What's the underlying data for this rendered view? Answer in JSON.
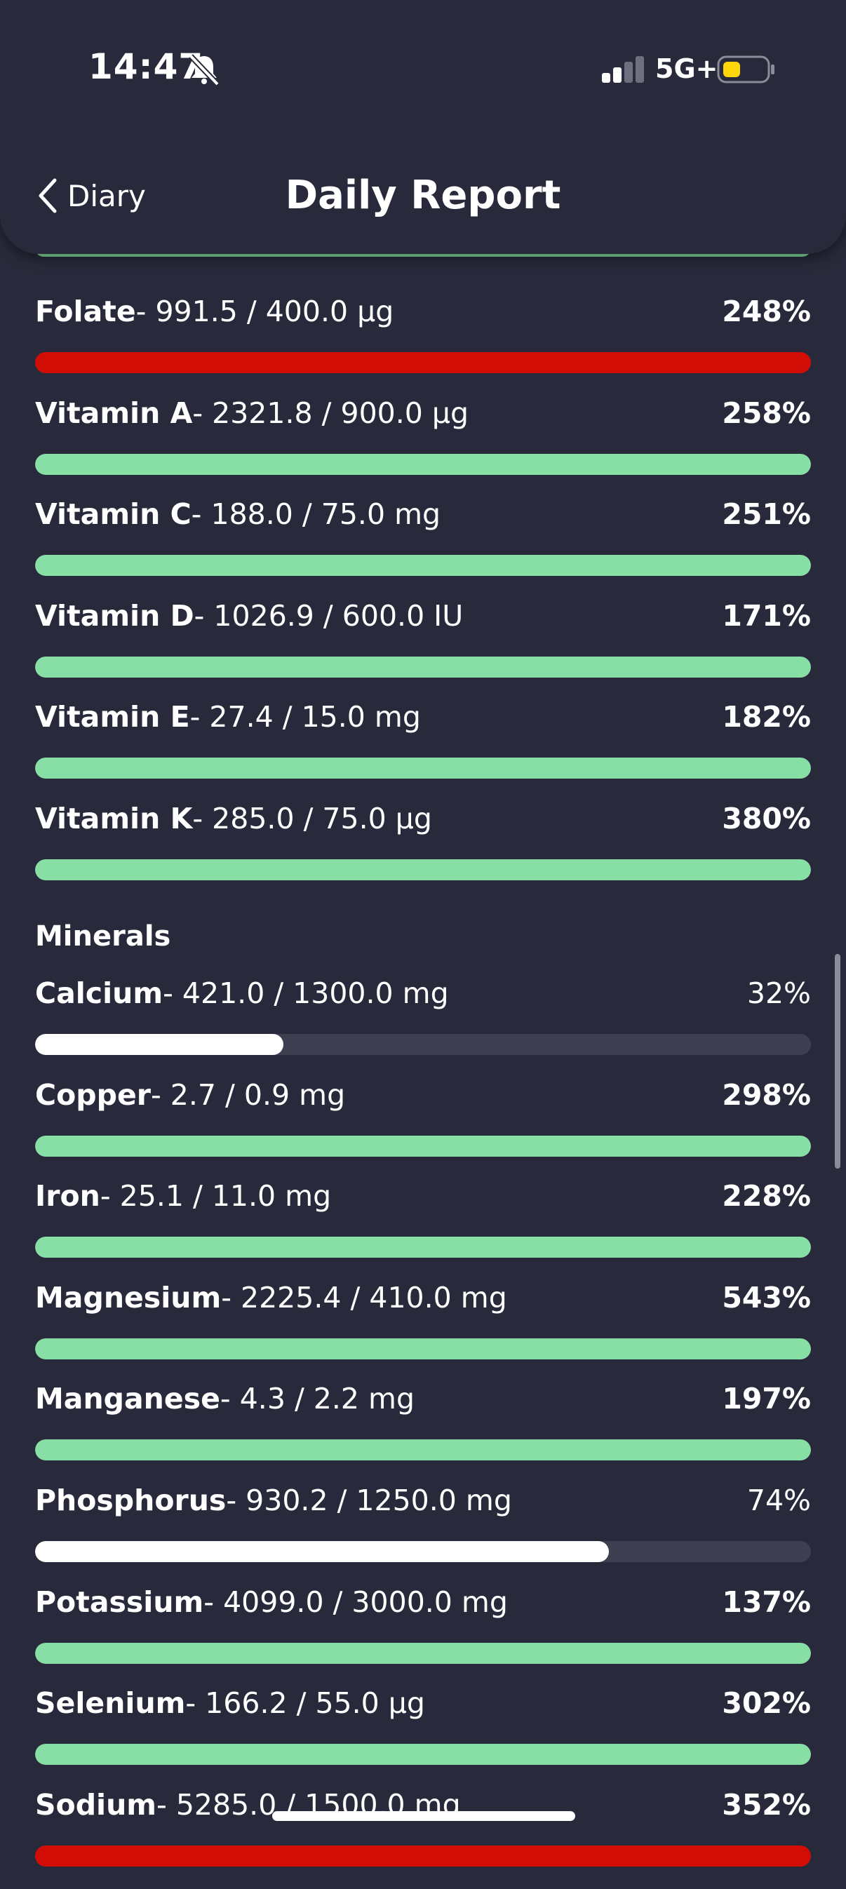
{
  "status_bar": {
    "time": "14:47",
    "network": "5G+",
    "icons": [
      "bell-muted-icon",
      "signal-icon",
      "battery-icon"
    ]
  },
  "nav": {
    "back_label": "Diary",
    "title": "Daily Report"
  },
  "colors": {
    "background": "#282a3b",
    "on_target": "#87dfa5",
    "over_limit": "#d20d06",
    "under_target": "#ffffff",
    "track": "#3e4052"
  },
  "vitamins": [
    {
      "name": "Folate",
      "amount": "- 991.5 / 400.0 µg",
      "percent": "248%",
      "fraction": 1.0,
      "status": "red"
    },
    {
      "name": "Vitamin A",
      "amount": "- 2321.8 / 900.0 µg",
      "percent": "258%",
      "fraction": 1.0,
      "status": "green"
    },
    {
      "name": "Vitamin C",
      "amount": "- 188.0 / 75.0 mg",
      "percent": "251%",
      "fraction": 1.0,
      "status": "green"
    },
    {
      "name": "Vitamin D",
      "amount": "- 1026.9 / 600.0 IU",
      "percent": "171%",
      "fraction": 1.0,
      "status": "green"
    },
    {
      "name": "Vitamin E",
      "amount": "- 27.4 / 15.0 mg",
      "percent": "182%",
      "fraction": 1.0,
      "status": "green"
    },
    {
      "name": "Vitamin K",
      "amount": "- 285.0 / 75.0 µg",
      "percent": "380%",
      "fraction": 1.0,
      "status": "green"
    }
  ],
  "minerals_heading": "Minerals",
  "minerals": [
    {
      "name": "Calcium",
      "amount": "- 421.0 / 1300.0 mg",
      "percent": "32%",
      "fraction": 0.32,
      "status": "white"
    },
    {
      "name": "Copper",
      "amount": "- 2.7 / 0.9 mg",
      "percent": "298%",
      "fraction": 1.0,
      "status": "green"
    },
    {
      "name": "Iron",
      "amount": "- 25.1 / 11.0 mg",
      "percent": "228%",
      "fraction": 1.0,
      "status": "green"
    },
    {
      "name": "Magnesium",
      "amount": "- 2225.4 / 410.0 mg",
      "percent": "543%",
      "fraction": 1.0,
      "status": "green"
    },
    {
      "name": "Manganese",
      "amount": "- 4.3 / 2.2 mg",
      "percent": "197%",
      "fraction": 1.0,
      "status": "green"
    },
    {
      "name": "Phosphorus",
      "amount": "- 930.2 / 1250.0 mg",
      "percent": "74%",
      "fraction": 0.74,
      "status": "white"
    },
    {
      "name": "Potassium",
      "amount": "- 4099.0 / 3000.0 mg",
      "percent": "137%",
      "fraction": 1.0,
      "status": "green"
    },
    {
      "name": "Selenium",
      "amount": "- 166.2 / 55.0 µg",
      "percent": "302%",
      "fraction": 1.0,
      "status": "green"
    },
    {
      "name": "Sodium",
      "amount": "- 5285.0 / 1500.0 mg",
      "percent": "352%",
      "fraction": 1.0,
      "status": "red"
    }
  ]
}
